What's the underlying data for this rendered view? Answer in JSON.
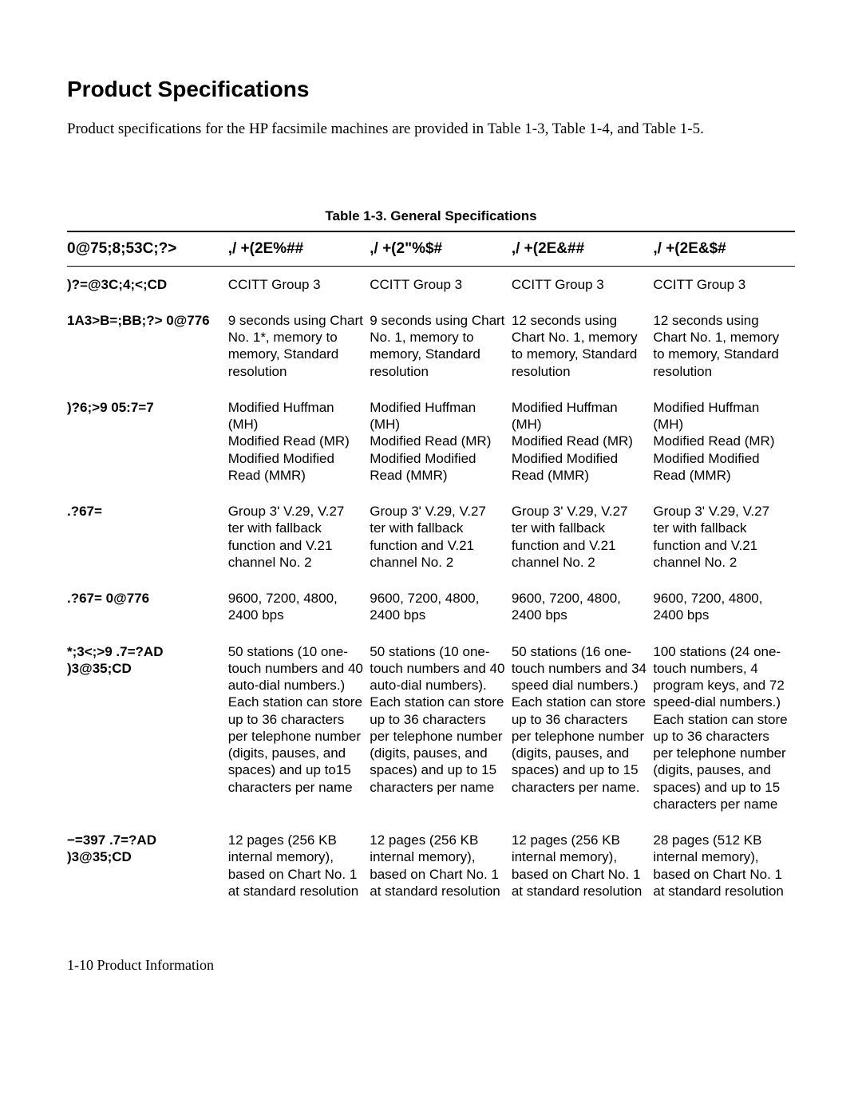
{
  "section_title": "Product Specifications",
  "intro": "Product specifications for the HP facsimile machines are provided in Table 1-3, Table 1-4, and Table 1-5.",
  "table": {
    "caption": "Table 1-3. General Specifications",
    "header_col0": "0@75;8;53C;?>",
    "header_cols": [
      ",/  +(2E%##",
      ",/  +(2\"%$#",
      ",/  +(2E&##",
      ",/  +(2E&$#"
    ],
    "rows": [
      {
        "label": ")?=@3C;4;<;CD",
        "cells": [
          "CCITT Group 3",
          "CCITT Group 3",
          "CCITT Group 3",
          "CCITT Group 3"
        ]
      },
      {
        "label": "1A3>B=;BB;?>  0@776",
        "cells": [
          "9 seconds using Chart No. 1*, memory to memory, Standard resolution",
          "9 seconds using Chart No. 1, memory to memory, Standard resolution",
          "12 seconds using Chart No. 1, memory to memory, Standard resolution",
          "12 seconds using Chart No. 1, memory to memory, Standard resolution"
        ]
      },
      {
        "label": ")?6;>9  05:7=7",
        "cells": [
          "Modified Huffman (MH)\nModified Read (MR)\nModified Modified Read (MMR)",
          "Modified Huffman (MH)\nModified Read (MR)\nModified Modified Read (MMR)",
          "Modified Huffman (MH)\nModified Read (MR)\nModified Modified Read (MMR)",
          "Modified Huffman (MH)\nModified Read (MR)\nModified Modified Read (MMR)"
        ]
      },
      {
        "label": ".?67=",
        "cells": [
          "Group 3' V.29, V.27 ter with fallback function and V.21 channel No. 2",
          "Group 3' V.29, V.27 ter with fallback function and V.21 channel No. 2",
          "Group 3' V.29, V.27 ter with fallback function and V.21 channel No. 2",
          "Group 3' V.29, V.27 ter with fallback function and V.21 channel No. 2"
        ]
      },
      {
        "label": ".?67=  0@776",
        "cells": [
          "9600, 7200, 4800, 2400 bps",
          "9600, 7200, 4800, 2400 bps",
          "9600, 7200, 4800, 2400 bps",
          "9600, 7200, 4800, 2400 bps"
        ]
      },
      {
        "label": "*;3<;>9  .7=?AD )3@35;CD",
        "cells": [
          "50 stations (10 one-touch numbers and 40 auto-dial numbers.) Each station can store up to 36 characters per telephone number (digits, pauses, and spaces) and up to15 characters per name",
          "50 stations (10 one-touch numbers and 40 auto-dial numbers). Each station can store up to 36 characters per telephone number (digits, pauses, and spaces) and up to 15 characters per name",
          "50 stations (16 one-touch numbers and 34 speed dial numbers.) Each station can store up to 36 characters per telephone number (digits, pauses, and spaces) and up to 15 characters per name.",
          "100 stations (24 one-touch numbers, 4 program keys, and 72 speed-dial numbers.) Each station can store up to 36 characters per telephone number (digits, pauses, and spaces) and up to 15 characters per name"
        ]
      },
      {
        "label": "−=397  .7=?AD )3@35;CD",
        "cells": [
          "12 pages (256 KB internal memory), based on Chart No. 1 at standard resolution",
          "12 pages (256 KB internal memory), based on Chart No. 1 at standard resolution",
          "12 pages (256 KB internal memory), based on Chart No. 1 at standard resolution",
          "28 pages (512 KB internal memory), based on Chart No. 1 at standard resolution"
        ]
      }
    ]
  },
  "footer": "1-10  Product Information"
}
